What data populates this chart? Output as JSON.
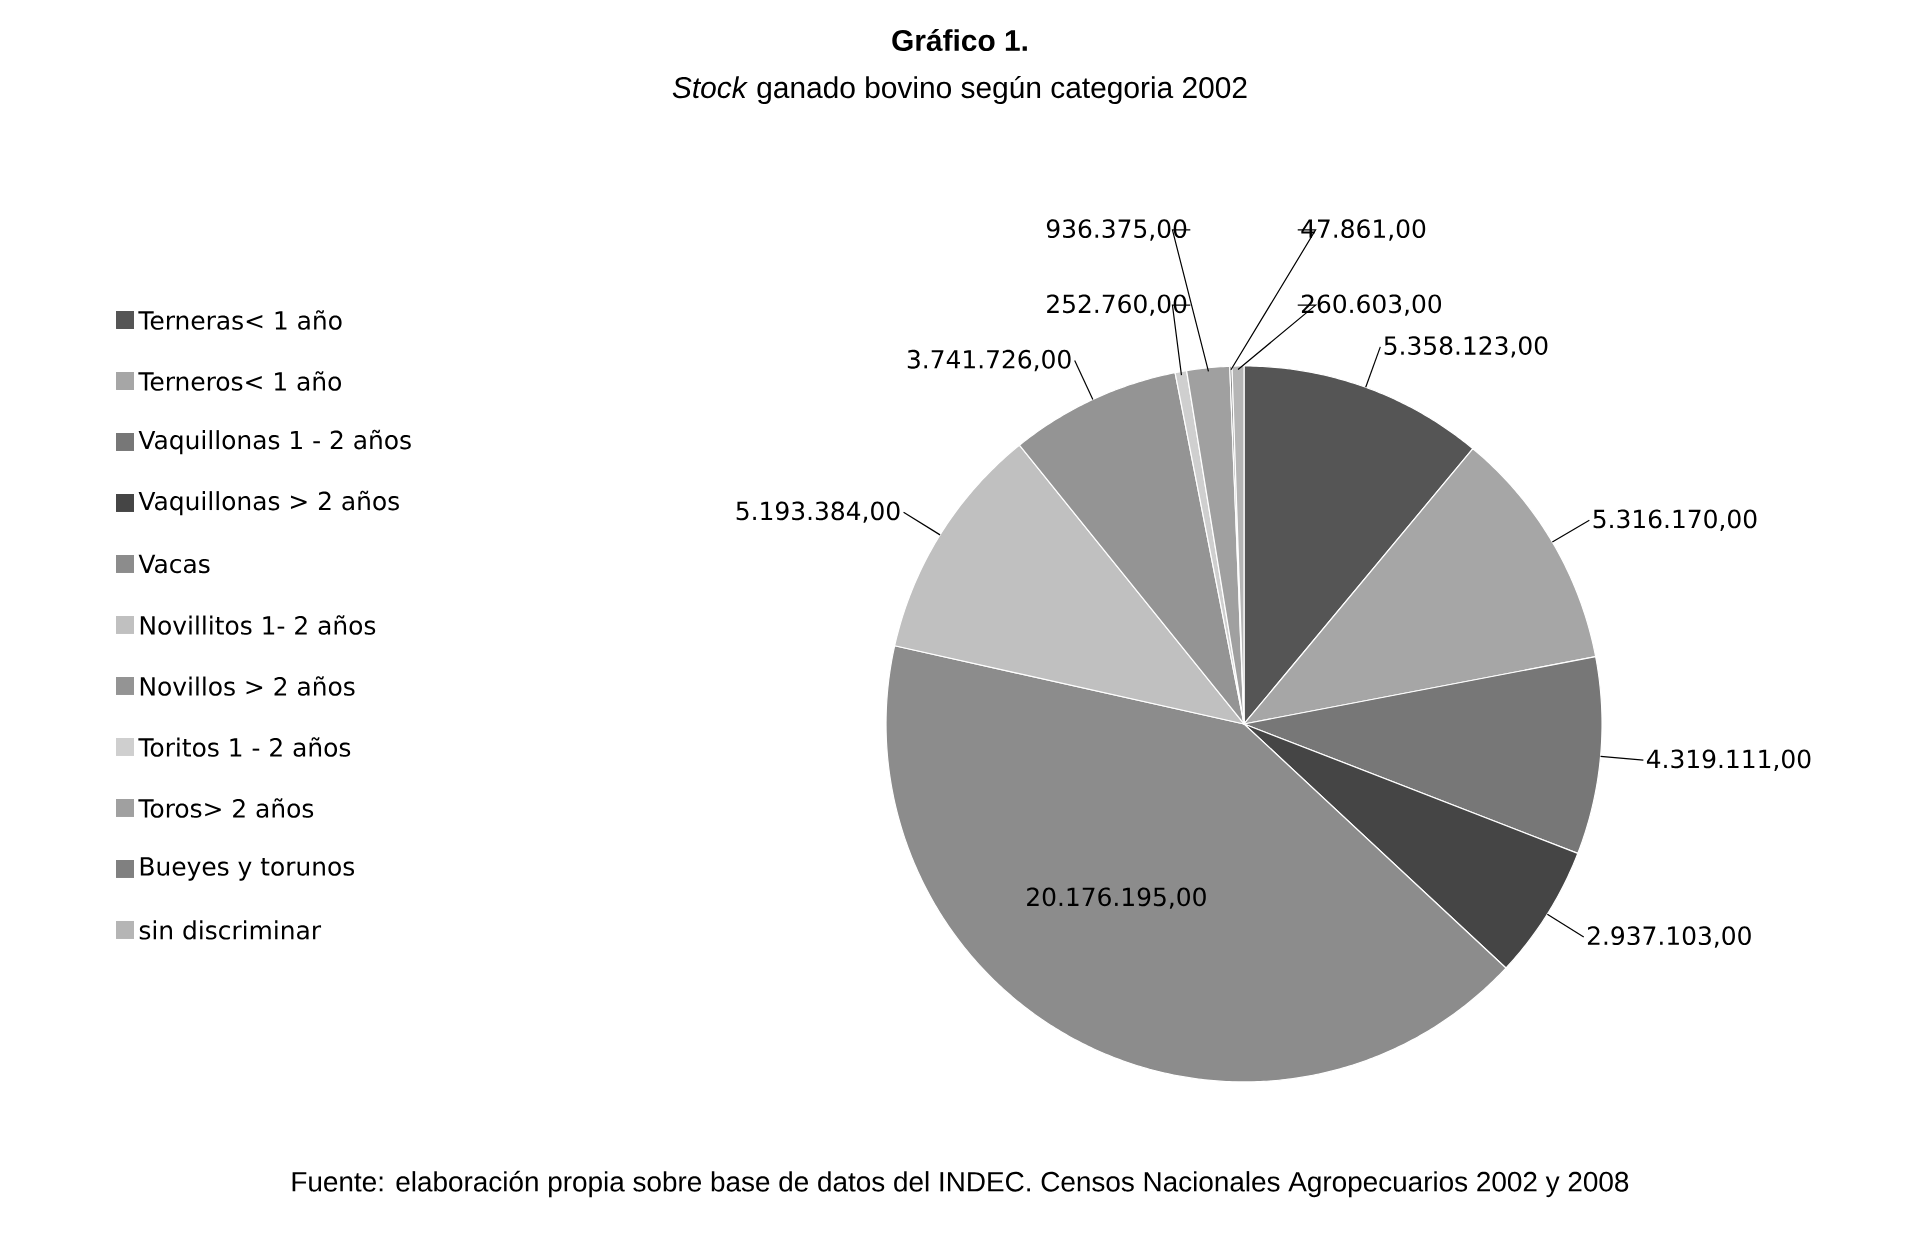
{
  "chart_data": {
    "type": "pie",
    "title": "Gráfico 1.",
    "subtitle": "*Stock* ganado bovino según categoria 2002",
    "categories": [
      "Terneras< 1 año",
      "Terneros< 1 año",
      "Vaquillonas 1 - 2 años",
      "Vaquillonas > 2 años",
      "Vacas",
      "Novillitos 1- 2 años",
      "Novillos > 2 años",
      "Toritos 1 - 2 años",
      "Toros> 2 años",
      "Bueyes y torunos",
      "sin discriminar"
    ],
    "values": [
      5358123,
      5316170,
      4319111,
      2937103,
      20176195,
      5193384,
      3741726,
      252760,
      936375,
      47861,
      260603
    ],
    "value_labels": [
      "5.358.123,00",
      "5.316.170,00",
      "4.319.111,00",
      "2.937.103,00",
      "20.176.195,00",
      "5.193.384,00",
      "3.741.726,00",
      "252.760,00",
      "936.375,00",
      "47.861,00",
      "260.603,00"
    ],
    "colors": [
      "#555555",
      "#a6a6a6",
      "#777777",
      "#454545",
      "#8c8c8c",
      "#c0c0c0",
      "#949494",
      "#cfcfcf",
      "#a0a0a0",
      "#808080",
      "#b5b5b5"
    ],
    "legend": "left",
    "annotations": [
      "Fuente: elaboración propia sobre base de datos del INDEC. Censos Nacionales Agropecuarios 2002 y 2008"
    ]
  }
}
